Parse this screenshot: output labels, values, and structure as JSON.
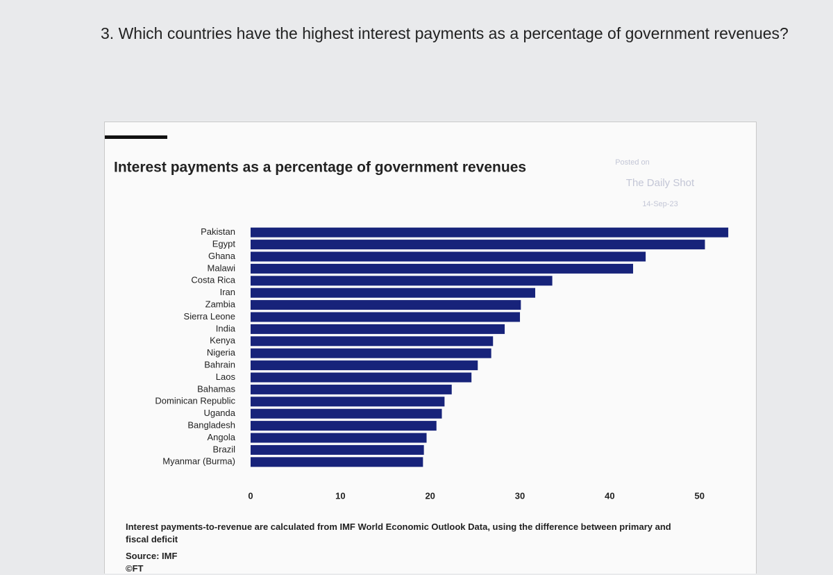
{
  "question": "3. Which countries have the highest interest payments as a percentage of government revenues?",
  "chart_data": {
    "type": "bar",
    "orientation": "horizontal",
    "title": "Interest payments as a percentage of government revenues",
    "categories": [
      "Pakistan",
      "Egypt",
      "Ghana",
      "Malawi",
      "Costa Rica",
      "Iran",
      "Zambia",
      "Sierra Leone",
      "India",
      "Kenya",
      "Nigeria",
      "Bahrain",
      "Laos",
      "Bahamas",
      "Dominican Republic",
      "Uganda",
      "Bangladesh",
      "Angola",
      "Brazil",
      "Myanmar (Burma)"
    ],
    "values": [
      53.2,
      50.6,
      44,
      42.6,
      33.6,
      31.7,
      30.1,
      30,
      28.3,
      27,
      26.8,
      25.3,
      24.6,
      22.4,
      21.6,
      21.3,
      20.7,
      19.6,
      19.3,
      19.2
    ],
    "color": "#17237a",
    "xlim": [
      0,
      53.5
    ],
    "xticks": [
      0,
      10,
      20,
      30,
      40,
      50
    ],
    "grid": false,
    "note": "Interest payments-to-revenue are calculated from IMF World Economic Outlook Data, using the difference between primary and fiscal deficit",
    "source": "Source: IMF",
    "credit": "©FT",
    "watermark": [
      "Posted on",
      "The Daily Shot",
      "14-Sep-23"
    ]
  }
}
